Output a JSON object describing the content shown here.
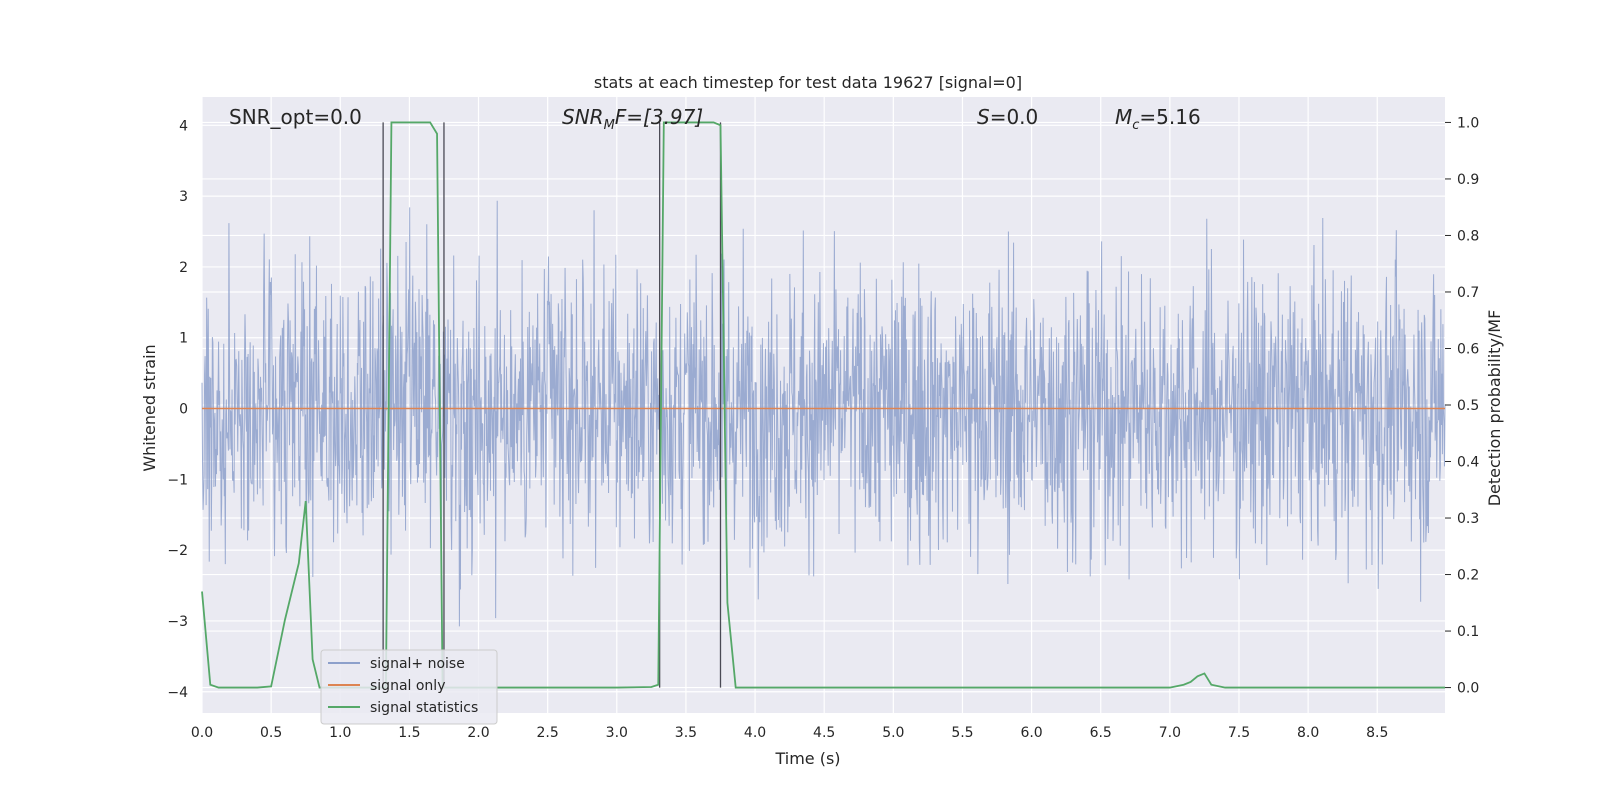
{
  "chart_data": {
    "type": "line",
    "title": "stats at each timestep for test data 19627 [signal=0]",
    "xlabel": "Time (s)",
    "ylabel_left": "Whitened strain",
    "ylabel_right": "Detection probability/MF",
    "xlim": [
      0,
      8.99
    ],
    "ylim_left": [
      -4.3,
      4.4
    ],
    "ylim_right": [
      -0.045,
      1.045
    ],
    "x_ticks": [
      "0.0",
      "0.5",
      "1.0",
      "1.5",
      "2.0",
      "2.5",
      "3.0",
      "3.5",
      "4.0",
      "4.5",
      "5.0",
      "5.5",
      "6.0",
      "6.5",
      "7.0",
      "7.5",
      "8.0",
      "8.5"
    ],
    "y_ticks_left": [
      "4",
      "3",
      "2",
      "1",
      "0",
      "−1",
      "−2",
      "−3",
      "−4"
    ],
    "y_ticks_right": [
      "1.0",
      "0.9",
      "0.8",
      "0.7",
      "0.6",
      "0.5",
      "0.4",
      "0.3",
      "0.2",
      "0.1",
      "0.0"
    ],
    "grid": true,
    "legend_position": "lower-left",
    "annotations": {
      "snr_opt": "SNR_opt=0.0",
      "snr_mf_base": "SNR",
      "snr_mf_sub": "M",
      "snr_mf_rest": "F=[3.97]",
      "s_italic": "S",
      "s_rest": "=0.0",
      "mc_italic": "M",
      "mc_sub": "c",
      "mc_rest": "=5.16"
    },
    "series": [
      {
        "name": "signal+ noise",
        "color": "#8da0cb",
        "axis": "left",
        "description_values": "whitened noise, roughly symmetric around 0, peaks up to about ±3.6"
      },
      {
        "name": "signal only",
        "color": "#dd8452",
        "axis": "left",
        "x": [
          0,
          8.99
        ],
        "y": [
          0,
          0
        ]
      },
      {
        "name": "signal statistics",
        "color": "#55a868",
        "axis": "right",
        "x": [
          0.0,
          0.06,
          0.12,
          0.2,
          0.3,
          0.4,
          0.5,
          0.6,
          0.7,
          0.75,
          0.8,
          0.85,
          0.9,
          1.0,
          1.1,
          1.2,
          1.3,
          1.33,
          1.37,
          1.45,
          1.55,
          1.65,
          1.7,
          1.74,
          1.78,
          1.85,
          2.0,
          2.5,
          3.0,
          3.25,
          3.3,
          3.34,
          3.4,
          3.5,
          3.6,
          3.7,
          3.75,
          3.8,
          3.86,
          4.0,
          4.5,
          5.0,
          5.5,
          6.0,
          6.5,
          7.0,
          7.1,
          7.15,
          7.2,
          7.25,
          7.3,
          7.4,
          7.5,
          8.0,
          8.5,
          8.99
        ],
        "y": [
          0.17,
          0.005,
          0.0,
          0.0,
          0.0,
          0.0,
          0.002,
          0.12,
          0.22,
          0.33,
          0.05,
          0.0,
          0.0,
          0.0,
          0.0,
          0.0,
          0.0,
          0.0,
          1.0,
          1.0,
          1.0,
          1.0,
          0.98,
          0.0,
          0.0,
          0.0,
          0.0,
          0.0,
          0.0,
          0.001,
          0.005,
          1.0,
          1.0,
          1.0,
          1.0,
          1.0,
          0.995,
          0.15,
          0.0,
          0.0,
          0.0,
          0.0,
          0.0,
          0.0,
          0.0,
          0.0,
          0.005,
          0.01,
          0.02,
          0.025,
          0.005,
          0.0,
          0.0,
          0.0,
          0.0,
          0.0
        ]
      }
    ],
    "vertical_markers": [
      {
        "x": 1.31,
        "y_top": 1.0,
        "y_bottom": 0.0
      },
      {
        "x": 1.75,
        "y_top": 1.0,
        "y_bottom": 0.0
      },
      {
        "x": 3.31,
        "y_top": 1.0,
        "y_bottom": 0.0
      },
      {
        "x": 3.75,
        "y_top": 1.0,
        "y_bottom": 0.0
      }
    ]
  }
}
